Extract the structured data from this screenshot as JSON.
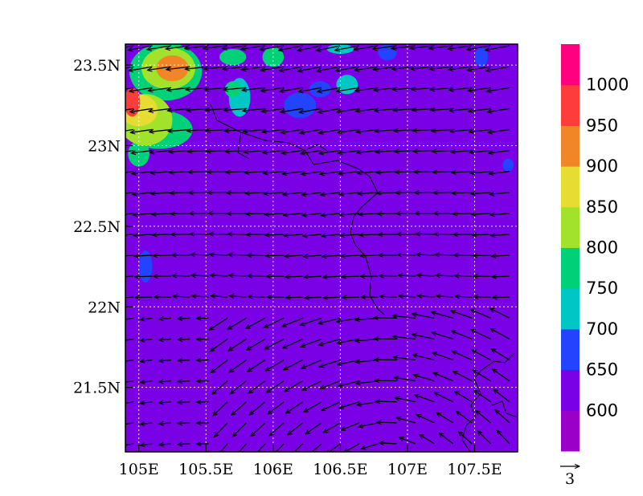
{
  "chart_data": {
    "type": "heatmap",
    "title": "",
    "xlabel": "",
    "ylabel": "",
    "x_ticks": [
      {
        "value": 105.0,
        "label": "105E"
      },
      {
        "value": 105.5,
        "label": "105.5E"
      },
      {
        "value": 106.0,
        "label": "106E"
      },
      {
        "value": 106.5,
        "label": "106.5E"
      },
      {
        "value": 107.0,
        "label": "107E"
      },
      {
        "value": 107.5,
        "label": "107.5E"
      }
    ],
    "y_ticks": [
      {
        "value": 21.5,
        "label": "21.5N"
      },
      {
        "value": 22.0,
        "label": "22N"
      },
      {
        "value": 22.5,
        "label": "22.5N"
      },
      {
        "value": 23.0,
        "label": "23N"
      },
      {
        "value": 23.5,
        "label": "23.5N"
      }
    ],
    "xlim": [
      104.9,
      107.82
    ],
    "ylim": [
      21.1,
      23.63
    ],
    "grid": true,
    "colorbar": {
      "boundaries": [
        550,
        600,
        650,
        700,
        750,
        800,
        850,
        900,
        950,
        1000,
        1050
      ],
      "labels": [
        {
          "value": 600,
          "label": "600"
        },
        {
          "value": 650,
          "label": "650"
        },
        {
          "value": 700,
          "label": "700"
        },
        {
          "value": 750,
          "label": "750"
        },
        {
          "value": 800,
          "label": "800"
        },
        {
          "value": 850,
          "label": "850"
        },
        {
          "value": 900,
          "label": "900"
        },
        {
          "value": 950,
          "label": "950"
        },
        {
          "value": 1000,
          "label": "1000"
        }
      ],
      "colors": [
        "#9a00c8",
        "#7a00e6",
        "#2244ff",
        "#00c6c6",
        "#00d078",
        "#a2e22a",
        "#e6dc32",
        "#f08628",
        "#ff3c3c",
        "#ff0080"
      ]
    },
    "background_level_color": "#7a00e6",
    "features": [
      {
        "level": 900,
        "lon": 105.25,
        "lat": 23.48,
        "r_lon": 0.12,
        "r_lat": 0.08
      },
      {
        "level": 800,
        "lon": 105.22,
        "lat": 23.48,
        "r_lon": 0.2,
        "r_lat": 0.13
      },
      {
        "level": 750,
        "lon": 105.2,
        "lat": 23.46,
        "r_lon": 0.27,
        "r_lat": 0.18
      },
      {
        "level": 950,
        "lon": 104.95,
        "lat": 23.27,
        "r_lon": 0.06,
        "r_lat": 0.09
      },
      {
        "level": 850,
        "lon": 105.0,
        "lat": 23.22,
        "r_lon": 0.14,
        "r_lat": 0.1
      },
      {
        "level": 800,
        "lon": 105.05,
        "lat": 23.16,
        "r_lon": 0.2,
        "r_lat": 0.16
      },
      {
        "level": 750,
        "lon": 105.15,
        "lat": 23.1,
        "r_lon": 0.25,
        "r_lat": 0.12
      },
      {
        "level": 750,
        "lon": 105.0,
        "lat": 22.95,
        "r_lon": 0.08,
        "r_lat": 0.08
      },
      {
        "level": 750,
        "lon": 105.7,
        "lat": 23.55,
        "r_lon": 0.1,
        "r_lat": 0.05
      },
      {
        "level": 750,
        "lon": 106.0,
        "lat": 23.55,
        "r_lon": 0.08,
        "r_lat": 0.06
      },
      {
        "level": 700,
        "lon": 106.5,
        "lat": 23.6,
        "r_lon": 0.1,
        "r_lat": 0.03
      },
      {
        "level": 750,
        "lon": 105.7,
        "lat": 23.35,
        "r_lon": 0.06,
        "r_lat": 0.05
      },
      {
        "level": 700,
        "lon": 105.75,
        "lat": 23.3,
        "r_lon": 0.08,
        "r_lat": 0.12
      },
      {
        "level": 650,
        "lon": 106.2,
        "lat": 23.25,
        "r_lon": 0.12,
        "r_lat": 0.08
      },
      {
        "level": 650,
        "lon": 106.35,
        "lat": 23.35,
        "r_lon": 0.08,
        "r_lat": 0.05
      },
      {
        "level": 700,
        "lon": 106.55,
        "lat": 23.38,
        "r_lon": 0.08,
        "r_lat": 0.06
      },
      {
        "level": 650,
        "lon": 106.85,
        "lat": 23.58,
        "r_lon": 0.07,
        "r_lat": 0.05
      },
      {
        "level": 650,
        "lon": 107.55,
        "lat": 23.55,
        "r_lon": 0.05,
        "r_lat": 0.06
      },
      {
        "level": 650,
        "lon": 107.75,
        "lat": 22.88,
        "r_lon": 0.04,
        "r_lat": 0.04
      },
      {
        "level": 650,
        "lon": 105.05,
        "lat": 22.25,
        "r_lon": 0.05,
        "r_lat": 0.1
      },
      {
        "level": 600,
        "lon": 107.55,
        "lat": 21.4,
        "r_lon": 0.28,
        "r_lat": 0.38
      },
      {
        "level": 600,
        "lon": 107.1,
        "lat": 21.2,
        "r_lon": 0.15,
        "r_lat": 0.12
      }
    ],
    "vector_reference": {
      "label": "3",
      "magnitude": 3
    }
  }
}
